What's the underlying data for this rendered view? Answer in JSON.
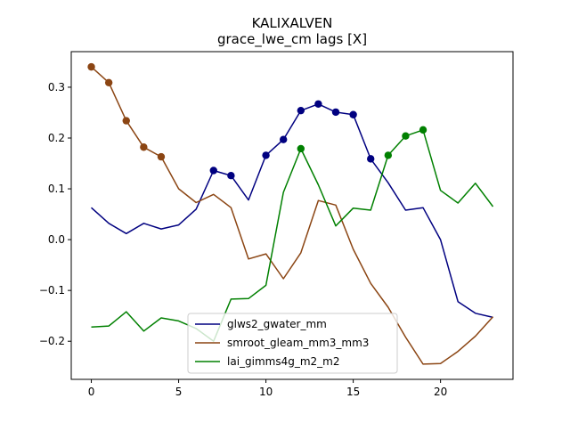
{
  "chart_data": {
    "type": "line",
    "title": "KALIXALVEN",
    "subtitle": "grace_lwe_cm lags [X]",
    "xlabel": "",
    "ylabel": "",
    "xlim": [
      -1.15,
      24.15
    ],
    "ylim": [
      -0.275,
      0.37
    ],
    "x_ticks": [
      0,
      5,
      10,
      15,
      20
    ],
    "y_ticks": [
      -0.2,
      -0.1,
      0.0,
      0.1,
      0.2,
      0.3
    ],
    "x_tick_labels": [
      "0",
      "5",
      "10",
      "15",
      "20"
    ],
    "y_tick_labels": [
      "−0.2",
      "−0.1",
      "0.0",
      "0.1",
      "0.2",
      "0.3"
    ],
    "grid": false,
    "legend_position": "lower-center",
    "x": [
      0,
      1,
      2,
      3,
      4,
      5,
      6,
      7,
      8,
      9,
      10,
      11,
      12,
      13,
      14,
      15,
      16,
      17,
      18,
      19,
      20,
      21,
      22,
      23
    ],
    "series": [
      {
        "name": "glws2_gwater_mm",
        "color": "#000080",
        "values": [
          0.063,
          0.032,
          0.012,
          0.032,
          0.021,
          0.029,
          0.06,
          0.136,
          0.126,
          0.078,
          0.166,
          0.197,
          0.254,
          0.267,
          0.251,
          0.246,
          0.159,
          0.112,
          0.058,
          0.063,
          0.0,
          -0.122,
          -0.145,
          -0.153
        ],
        "markers": [
          7,
          8,
          10,
          11,
          12,
          13,
          14,
          15,
          16
        ]
      },
      {
        "name": "smroot_gleam_mm3_mm3",
        "color": "#8B4513",
        "values": [
          0.34,
          0.309,
          0.234,
          0.182,
          0.163,
          0.1,
          0.073,
          0.089,
          0.063,
          -0.038,
          -0.028,
          -0.077,
          -0.026,
          0.077,
          0.068,
          -0.019,
          -0.086,
          -0.133,
          -0.192,
          -0.245,
          -0.244,
          -0.22,
          -0.19,
          -0.152
        ],
        "markers": [
          0,
          1,
          2,
          3,
          4
        ]
      },
      {
        "name": "lai_gimms4g_m2_m2",
        "color": "#008000",
        "values": [
          -0.172,
          -0.17,
          -0.142,
          -0.18,
          -0.154,
          -0.16,
          -0.175,
          -0.2,
          -0.117,
          -0.116,
          -0.09,
          0.093,
          0.179,
          0.108,
          0.027,
          0.062,
          0.058,
          0.166,
          0.204,
          0.216,
          0.097,
          0.072,
          0.111,
          0.065
        ],
        "markers": [
          12,
          17,
          18,
          19
        ]
      }
    ]
  }
}
